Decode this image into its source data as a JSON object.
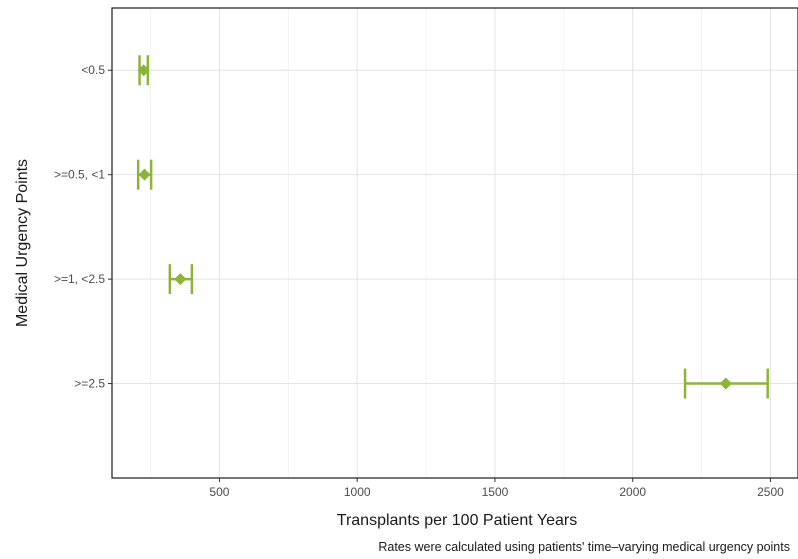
{
  "chart_data": {
    "type": "errorbar",
    "title": "",
    "xlabel": "Transplants per 100 Patient Years",
    "ylabel": "Medical Urgency Points",
    "caption": "Rates were calculated using patients' time–varying medical urgency points",
    "xlim": [
      110,
      2600
    ],
    "x_ticks": [
      500,
      1000,
      1500,
      2000,
      2500
    ],
    "grid": true,
    "point_color": "#8cb33a",
    "categories": [
      "<0.5",
      ">=0.5, <1",
      ">=1, <2.5",
      ">=2.5"
    ],
    "estimate": [
      225,
      228,
      358,
      2338
    ],
    "lower": [
      210,
      205,
      320,
      2190
    ],
    "upper": [
      240,
      252,
      400,
      2490
    ]
  }
}
